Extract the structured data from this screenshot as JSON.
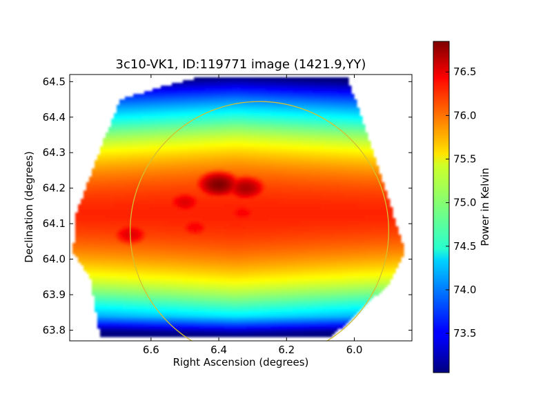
{
  "chart_data": {
    "type": "heatmap",
    "title": "3c10-VK1, ID:119771 image (1421.9,YY)",
    "xlabel": "Right Ascension (degrees)",
    "ylabel": "Declination (degrees)",
    "xlim": [
      6.84,
      5.83
    ],
    "ylim": [
      63.77,
      64.52
    ],
    "x_inverted": true,
    "xticks": [
      "6.6",
      "6.4",
      "6.2",
      "6.0"
    ],
    "xtick_values": [
      6.6,
      6.4,
      6.2,
      6.0
    ],
    "yticks": [
      "63.8",
      "63.9",
      "64.0",
      "64.1",
      "64.2",
      "64.3",
      "64.4",
      "64.5"
    ],
    "ytick_values": [
      63.8,
      63.9,
      64.0,
      64.1,
      64.2,
      64.3,
      64.4,
      64.5
    ],
    "colormap": "jet",
    "colorbar": {
      "label": "Power in Kelvin",
      "range": [
        73.05,
        76.85
      ],
      "ticks": [
        "73.5",
        "74.0",
        "74.5",
        "75.0",
        "75.5",
        "76.0",
        "76.5"
      ],
      "tick_values": [
        73.5,
        74.0,
        74.5,
        75.0,
        75.5,
        76.0,
        76.5
      ]
    },
    "footprint_ra_dec": [
      [
        6.69,
        64.45
      ],
      [
        6.55,
        64.49
      ],
      [
        6.47,
        64.51
      ],
      [
        6.02,
        64.51
      ],
      [
        5.94,
        64.29
      ],
      [
        5.85,
        64.02
      ],
      [
        5.9,
        63.93
      ],
      [
        6.07,
        63.78
      ],
      [
        6.75,
        63.78
      ],
      [
        6.78,
        63.95
      ],
      [
        6.83,
        64.02
      ],
      [
        6.82,
        64.13
      ],
      [
        6.75,
        64.31
      ]
    ],
    "hotspots_ra_dec_kelvin": [
      [
        6.4,
        64.21,
        76.85
      ],
      [
        6.32,
        64.2,
        76.7
      ],
      [
        6.5,
        64.16,
        76.5
      ],
      [
        6.66,
        64.07,
        76.5
      ],
      [
        6.47,
        64.09,
        76.4
      ],
      [
        6.33,
        64.13,
        76.4
      ]
    ],
    "circle": {
      "center_ra": 6.28,
      "center_dec": 64.08,
      "radius_deg": 0.364,
      "color": "#d4c030"
    }
  }
}
